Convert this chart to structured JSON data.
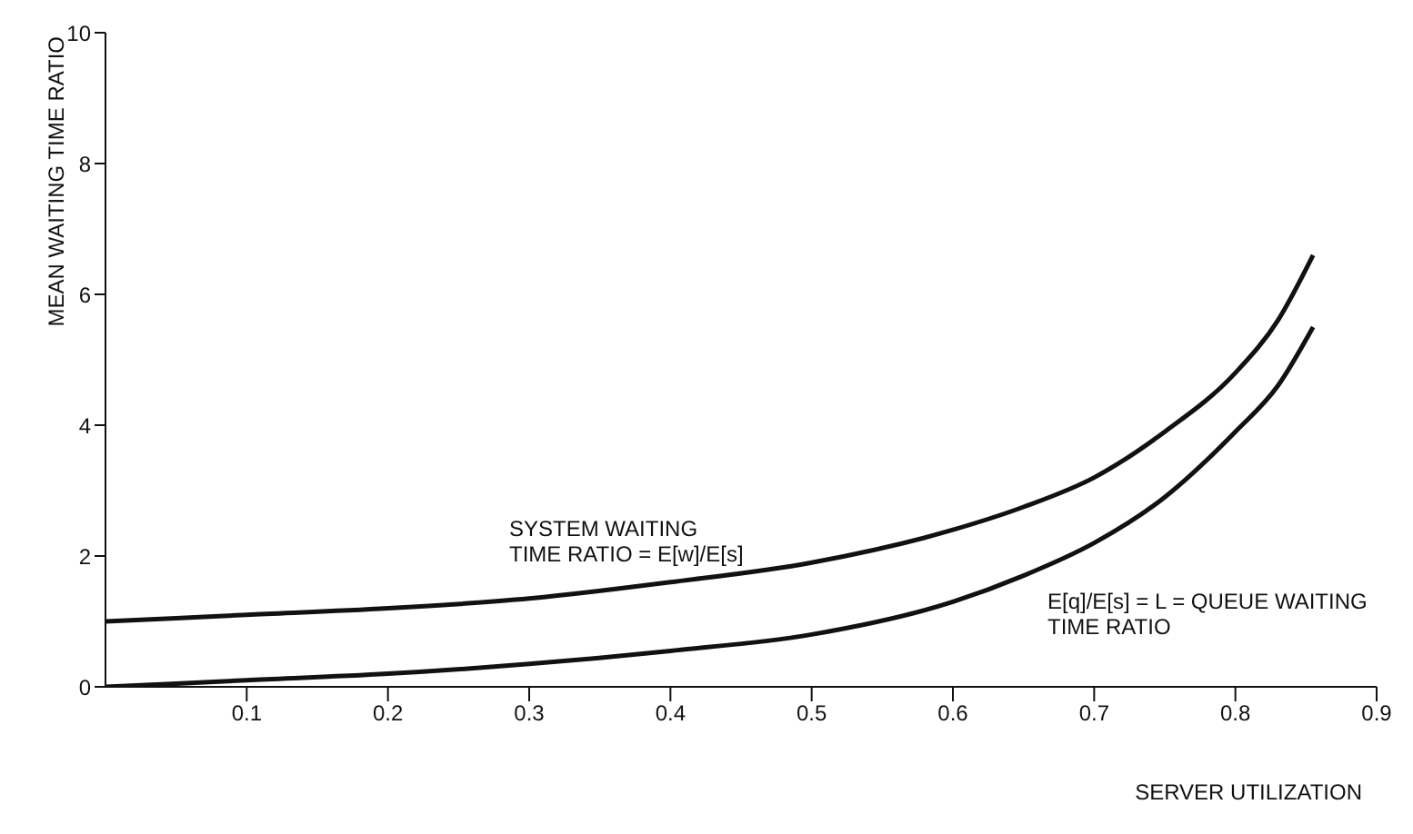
{
  "chart_data": {
    "type": "line",
    "xlabel": "SERVER UTILIZATION",
    "ylabel": "MEAN WAITING TIME RATIO",
    "x": [
      0,
      0.1,
      0.2,
      0.3,
      0.4,
      0.5,
      0.6,
      0.65,
      0.7,
      0.75,
      0.8,
      0.83,
      0.855
    ],
    "series": [
      {
        "color": "#111111",
        "values": [
          1,
          1.1,
          1.2,
          1.35,
          1.6,
          1.9,
          2.4,
          2.75,
          3.2,
          3.9,
          4.8,
          5.6,
          6.6
        ]
      },
      {
        "color": "#111111",
        "values": [
          0,
          0.1,
          0.2,
          0.35,
          0.55,
          0.8,
          1.3,
          1.7,
          2.2,
          2.9,
          3.9,
          4.6,
          5.5
        ]
      }
    ],
    "xlim": [
      0,
      0.9
    ],
    "xticks": [
      0.1,
      0.2,
      0.3,
      0.4,
      0.5,
      0.6,
      0.7,
      0.8,
      0.9
    ],
    "ylim": [
      0,
      10
    ],
    "yticks": [
      0,
      2,
      4,
      6,
      8,
      10
    ],
    "annotations": [
      "SYSTEM WAITING\nTIME RATIO = E[w]/E[s]",
      "E[q]/E[s] = L = QUEUE WAITING\nTIME RATIO"
    ],
    "grid": false,
    "marker": "none",
    "line_style": "solid"
  }
}
